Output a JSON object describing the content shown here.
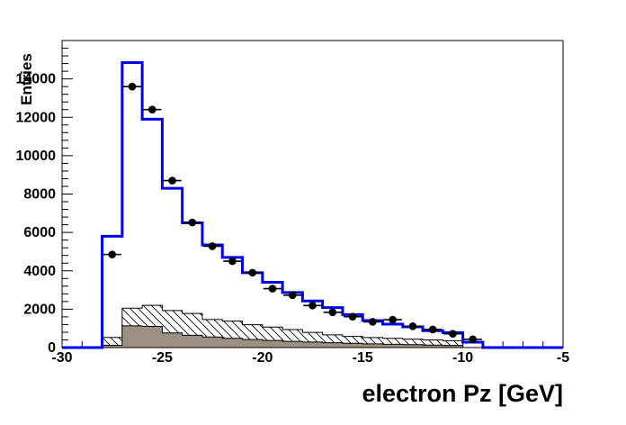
{
  "chart_data": {
    "type": "histogram",
    "title": "",
    "grid": false,
    "legend": "none",
    "x_axis": {
      "label": "electron Pz [GeV]",
      "min": -30,
      "max": -5,
      "major_step": 5,
      "minor_step": 1,
      "major_tick_labels": [
        "-30",
        "-25",
        "-20",
        "-15",
        "-10",
        "-5"
      ]
    },
    "y_axis": {
      "label": "Entries",
      "min": 0,
      "max": 16000,
      "major_step": 2000,
      "minor_step": 400,
      "major_tick_labels": [
        "0",
        "2000",
        "4000",
        "6000",
        "8000",
        "10000",
        "12000",
        "14000"
      ]
    },
    "bins": {
      "first_edge": -28,
      "bin_width": 1,
      "count": 19
    },
    "series": [
      {
        "name": "blue outline histogram",
        "role": "line-histogram",
        "color": "#0000ee",
        "line_width": 3,
        "values": [
          5800,
          14850,
          11900,
          8300,
          6500,
          5350,
          4700,
          3900,
          3400,
          2870,
          2430,
          2080,
          1720,
          1410,
          1220,
          1080,
          880,
          780,
          280
        ]
      },
      {
        "name": "hatched background histogram",
        "role": "hatched-histogram",
        "fill": "diagonal-hatch",
        "color": "#000000",
        "values": [
          530,
          2050,
          2200,
          1930,
          1780,
          1460,
          1380,
          1190,
          1070,
          940,
          790,
          660,
          580,
          520,
          480,
          440,
          400,
          360,
          0
        ]
      },
      {
        "name": "solid gray background histogram",
        "role": "filled-histogram",
        "color": "#9c9082",
        "values": [
          120,
          1130,
          1100,
          760,
          640,
          550,
          480,
          420,
          370,
          320,
          285,
          250,
          220,
          195,
          170,
          150,
          130,
          110,
          0
        ]
      },
      {
        "name": "data points",
        "role": "scatter-markers",
        "marker": "filled-circle",
        "color": "#000000",
        "bin_centers": [
          -27.5,
          -26.5,
          -25.5,
          -24.5,
          -23.5,
          -22.5,
          -21.5,
          -20.5,
          -19.5,
          -18.5,
          -17.5,
          -16.5,
          -15.5,
          -14.5,
          -13.5,
          -12.5,
          -11.5,
          -10.5,
          -9.5
        ],
        "values": [
          4850,
          13600,
          12400,
          8700,
          6520,
          5280,
          4500,
          3900,
          3070,
          2730,
          2190,
          1840,
          1610,
          1340,
          1450,
          1110,
          940,
          720,
          430
        ]
      }
    ]
  }
}
